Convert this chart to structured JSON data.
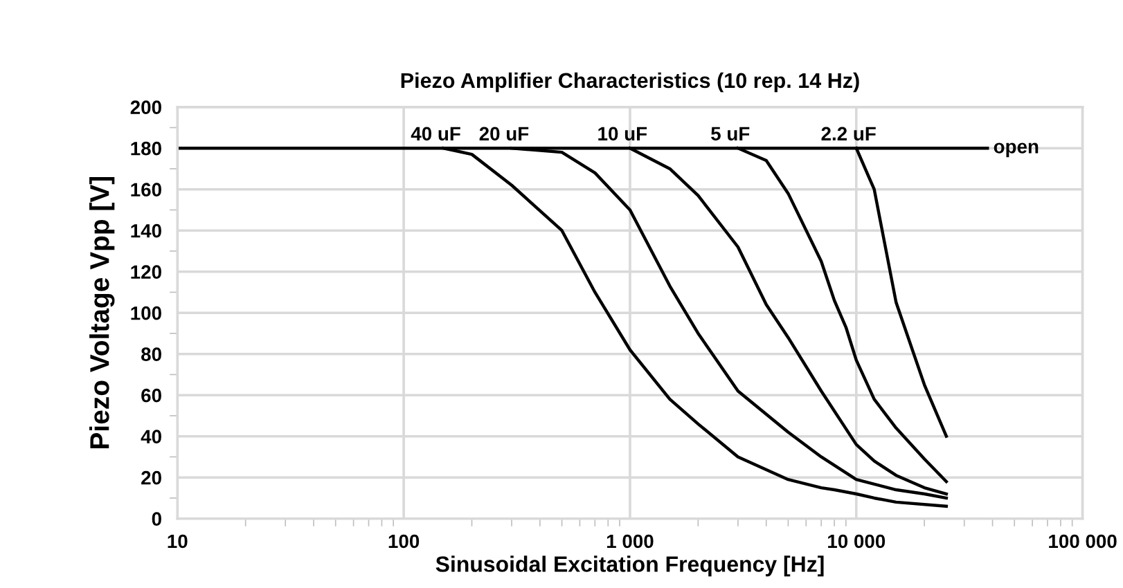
{
  "chart_data": {
    "type": "line",
    "title": "Piezo Amplifier Characteristics (10 rep. 14 Hz)",
    "xlabel": "Sinusoidal Excitation Frequency [Hz]",
    "ylabel": "Piezo Voltage Vpp [V]",
    "log": "x",
    "grid": true,
    "legend": false,
    "marker": "none",
    "line_style": "solid",
    "xlim": [
      10,
      100000
    ],
    "ylim": [
      0,
      200
    ],
    "xticks": [
      10,
      100,
      {
        "value": 1000,
        "label": "1 000"
      },
      {
        "value": 10000,
        "label": "10 000"
      },
      {
        "value": 100000,
        "label": "100 000"
      }
    ],
    "yticks": [
      0,
      20,
      40,
      60,
      80,
      100,
      120,
      140,
      160,
      180,
      200
    ],
    "series": [
      {
        "name": "open",
        "color": "#000000",
        "x": [
          10,
          38000
        ],
        "values": [
          180,
          180
        ]
      },
      {
        "name": "40 uF",
        "color": "#000000",
        "x": [
          150,
          200,
          300,
          500,
          700,
          1000,
          1500,
          2000,
          3000,
          5000,
          7000,
          8000,
          10000,
          12000,
          15000,
          25000
        ],
        "values": [
          180,
          177,
          162,
          140,
          110,
          82,
          58,
          46,
          30,
          19,
          15,
          14,
          12,
          10,
          8,
          6
        ]
      },
      {
        "name": "20 uF",
        "color": "#000000",
        "x": [
          300,
          500,
          700,
          1000,
          1500,
          2000,
          3000,
          5000,
          7000,
          10000,
          15000,
          20000,
          25000
        ],
        "values": [
          180,
          178,
          168,
          150,
          113,
          90,
          62,
          42,
          30,
          19,
          14,
          12,
          10
        ]
      },
      {
        "name": "10 uF",
        "color": "#000000",
        "x": [
          1000,
          1500,
          2000,
          3000,
          4000,
          5000,
          7000,
          10000,
          12000,
          15000,
          20000,
          25000
        ],
        "values": [
          180,
          170,
          157,
          132,
          104,
          88,
          62,
          36,
          28,
          21,
          15,
          12
        ]
      },
      {
        "name": "5 uF",
        "color": "#000000",
        "x": [
          3000,
          4000,
          5000,
          7000,
          8000,
          9000,
          10000,
          12000,
          15000,
          20000,
          25000
        ],
        "values": [
          180,
          174,
          158,
          125,
          106,
          93,
          77,
          58,
          44,
          29,
          18
        ]
      },
      {
        "name": "2.2 uF",
        "color": "#000000",
        "x": [
          10000,
          12000,
          15000,
          20000,
          25000
        ],
        "values": [
          180,
          160,
          105,
          65,
          40
        ]
      }
    ]
  }
}
